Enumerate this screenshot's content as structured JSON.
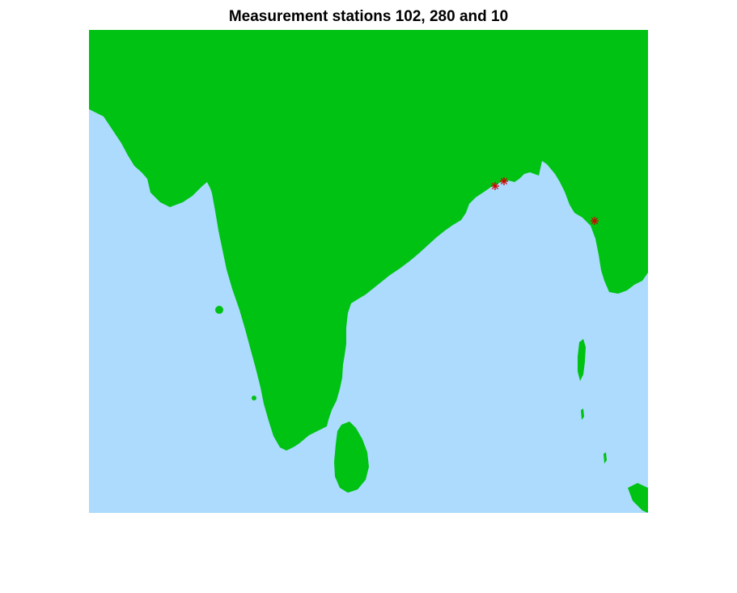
{
  "title": "Measurement stations 102, 280 and 10",
  "colors": {
    "background": "#ffffff",
    "sea": "#acdbfd",
    "land": "#00c213",
    "station_marker": "#d00000"
  },
  "markers": {
    "symbol": "asterisk",
    "icon_name": "star-marker-icon"
  },
  "stations": [
    {
      "id": "102"
    },
    {
      "id": "280"
    },
    {
      "id": "10"
    }
  ]
}
